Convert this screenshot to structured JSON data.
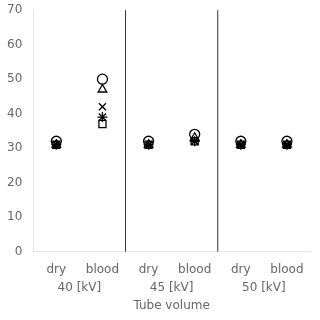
{
  "chart_data": {
    "type": "scatter",
    "xlabel": "Tube volume",
    "categories": [
      "dry",
      "blood",
      "dry",
      "blood",
      "dry",
      "blood"
    ],
    "annotations": [
      "40 [kV]",
      "45 [kV]",
      "50 [kV]"
    ],
    "series": [
      {
        "marker": "circle",
        "color": "#000000",
        "values": [
          32,
          50,
          32,
          34,
          32,
          32
        ]
      },
      {
        "marker": "triangle",
        "color": "#000000",
        "values": [
          31,
          47,
          31,
          33,
          31,
          31
        ]
      },
      {
        "marker": "cross",
        "color": "#000000",
        "values": [
          31,
          42,
          31,
          32,
          31,
          31
        ]
      },
      {
        "marker": "star",
        "color": "#000000",
        "values": [
          31,
          39,
          31,
          32,
          31,
          31
        ]
      },
      {
        "marker": "square",
        "color": "#000000",
        "values": [
          31,
          37,
          31,
          32,
          31,
          31
        ]
      }
    ],
    "ylim": [
      0,
      70
    ],
    "yticks": [
      0,
      10,
      20,
      30,
      40,
      50,
      60,
      70
    ],
    "grid": false
  }
}
